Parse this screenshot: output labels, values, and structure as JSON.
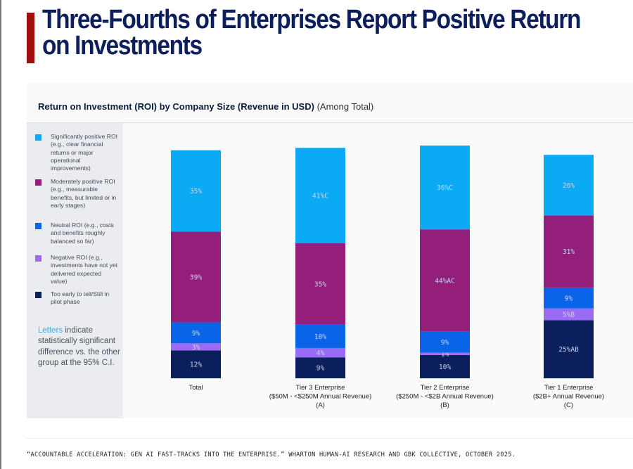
{
  "title": "Three-Fourths of Enterprises Report Positive Return on Investments",
  "subtitle_bold": "Return on Investment (ROI) by Company Size (Revenue in USD)",
  "subtitle_normal": "(Among Total)",
  "note": {
    "highlight": "Letters",
    "rest": " indicate statistically significant difference vs. the other group at the 95% C.I."
  },
  "footer": "“ACCOUNTABLE ACCELERATION: GEN AI FAST-TRACKS INTO THE ENTERPRISE.” WHARTON HUMAN-AI RESEARCH AND GBK COLLECTIVE, OCTOBER 2025.",
  "chart_data": {
    "type": "bar",
    "stacked": true,
    "title": "Return on Investment (ROI) by Company Size (Revenue in USD) (Among Total)",
    "categories": [
      "Total",
      "Tier 3 Enterprise\n($50M - <$250M Annual Revenue)\n(A)",
      "Tier 2 Enterprise\n($250M - <$2B Annual Revenue)\n(B)",
      "Tier 1 Enterprise\n($2B+ Annual Revenue)\n(C)"
    ],
    "legend_placement": "left",
    "grid": false,
    "series": [
      {
        "name": "Too early to tell/Still in pilot phase",
        "color": "#0a1f5c",
        "values": [
          12,
          9,
          10,
          25
        ],
        "labels": [
          "12%",
          "9%",
          "10%",
          "25%AB"
        ]
      },
      {
        "name": "Negative ROI (e.g., investments have not yet delivered expected value)",
        "color": "#9b6bf5",
        "values": [
          3,
          4,
          1,
          5
        ],
        "labels": [
          "3%",
          "4%",
          "1%",
          "5%B"
        ]
      },
      {
        "name": "Neutral ROI (e.g., costs and benefits roughly balanced so far)",
        "color": "#0a64e8",
        "values": [
          9,
          10,
          9,
          9
        ],
        "labels": [
          "9%",
          "10%",
          "9%",
          "9%"
        ]
      },
      {
        "name": "Moderately positive ROI (e.g., measurable benefits, but limited or in early stages)",
        "color": "#931f7a",
        "values": [
          39,
          35,
          44,
          31
        ],
        "labels": [
          "39%",
          "35%",
          "44%AC",
          "31%"
        ]
      },
      {
        "name": "Significantly positive ROI (e.g., clear financial returns or major operational improvements)",
        "color": "#0aaaf5",
        "values": [
          35,
          41,
          36,
          26
        ],
        "labels": [
          "35%",
          "41%C",
          "36%C",
          "26%"
        ]
      }
    ]
  }
}
